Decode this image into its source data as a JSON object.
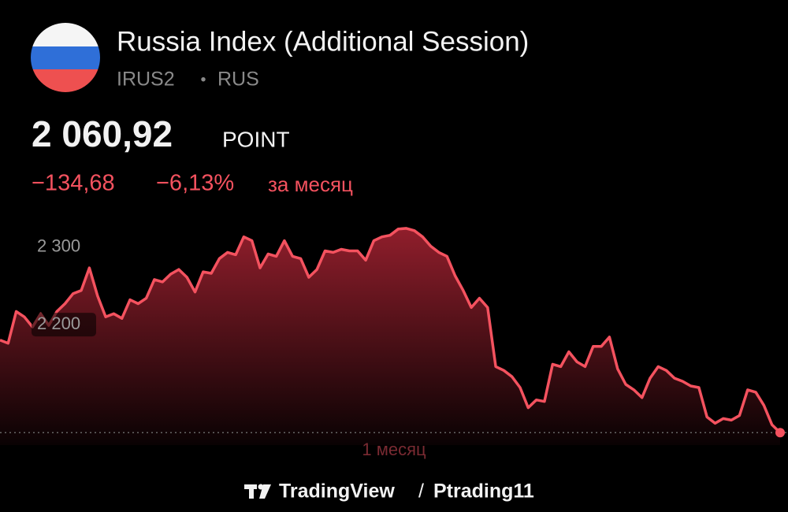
{
  "header": {
    "title": "Russia Index (Additional Session)",
    "symbol": "IRUS2",
    "separator": "•",
    "exchange": "RUS",
    "price": "2 060,92",
    "unit": "POINT",
    "change": "−134,68",
    "change_percent": "−6,13%",
    "period": "за месяц"
  },
  "chart_data": {
    "type": "line",
    "color": "#f4525f",
    "range_label": "1 месяц",
    "ylim": [
      2050,
      2334
    ],
    "yticks": [
      {
        "value": 2200,
        "label": "2 200"
      },
      {
        "value": 2300,
        "label": "2 300"
      }
    ],
    "values": [
      2180,
      2176,
      2217,
      2210,
      2197,
      2214,
      2199,
      2217,
      2227,
      2240,
      2244,
      2273,
      2237,
      2210,
      2214,
      2208,
      2232,
      2227,
      2234,
      2258,
      2255,
      2265,
      2271,
      2261,
      2242,
      2268,
      2266,
      2285,
      2293,
      2290,
      2313,
      2308,
      2273,
      2291,
      2288,
      2308,
      2288,
      2285,
      2261,
      2271,
      2295,
      2293,
      2297,
      2295,
      2295,
      2283,
      2308,
      2313,
      2315,
      2323,
      2324,
      2321,
      2313,
      2301,
      2293,
      2288,
      2263,
      2244,
      2222,
      2234,
      2222,
      2146,
      2141,
      2133,
      2119,
      2093,
      2103,
      2101,
      2149,
      2146,
      2165,
      2152,
      2146,
      2172,
      2172,
      2184,
      2143,
      2123,
      2116,
      2106,
      2131,
      2146,
      2141,
      2131,
      2127,
      2121,
      2119,
      2081,
      2073,
      2079,
      2077,
      2083,
      2116,
      2113,
      2096,
      2071,
      2060.92
    ]
  },
  "footer": {
    "brand": "TradingView",
    "separator": "/",
    "author": "Ptrading11"
  }
}
